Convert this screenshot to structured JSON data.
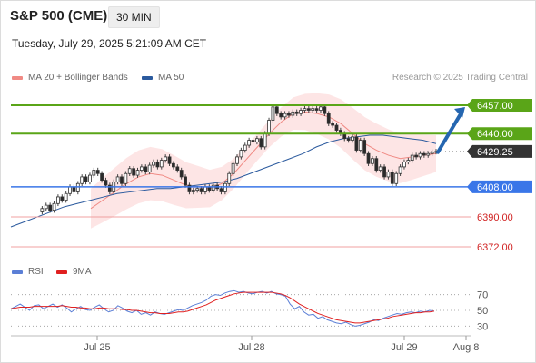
{
  "header": {
    "title": "S&P 500 (CME)",
    "timeframe": "30 MIN",
    "datetime": "Tuesday, July 29, 2025 5:21:09 AM CET",
    "source": "Research © 2025 Trading Central"
  },
  "legend_main": [
    {
      "label": "MA 20 + Bollinger Bands",
      "color": "#f08a84"
    },
    {
      "label": "MA 50",
      "color": "#2b5a9e"
    }
  ],
  "legend_rsi": [
    {
      "label": "RSI",
      "color": "#5b7fd6"
    },
    {
      "label": "9MA",
      "color": "#e02020"
    }
  ],
  "colors": {
    "resistance": "#5aa518",
    "support": "#3a76e8",
    "target": "#f0a0a0",
    "price_tag": "#333333",
    "arrow": "#2566b0",
    "band_fill": "#fde0e0",
    "candle_up": "#5aa518",
    "candle_down": "#e02020"
  },
  "chart_data": [
    {
      "type": "candlestick",
      "title": "S&P 500 (CME)",
      "price_range": [
        6362,
        6468
      ],
      "x_ticks": [
        "Jul 25",
        "Jul 28",
        "Jul 29",
        "Aug 8"
      ],
      "levels": [
        {
          "value": 6457.0,
          "label": "6457.00",
          "kind": "resistance"
        },
        {
          "value": 6440.0,
          "label": "6440.00",
          "kind": "resistance"
        },
        {
          "value": 6429.25,
          "label": "6429.25",
          "kind": "last_price"
        },
        {
          "value": 6408.0,
          "label": "6408.00",
          "kind": "support"
        },
        {
          "value": 6390.0,
          "label": "6390.00",
          "kind": "target"
        },
        {
          "value": 6372.0,
          "label": "6372.00",
          "kind": "target"
        }
      ],
      "close_series": [
        6393,
        6395,
        6397,
        6394,
        6398,
        6402,
        6400,
        6404,
        6408,
        6405,
        6410,
        6414,
        6411,
        6415,
        6418,
        6416,
        6412,
        6409,
        6405,
        6411,
        6414,
        6410,
        6416,
        6419,
        6415,
        6418,
        6420,
        6417,
        6421,
        6423,
        6420,
        6424,
        6426,
        6422,
        6420,
        6418,
        6414,
        6409,
        6405,
        6406,
        6407,
        6405,
        6408,
        6406,
        6409,
        6407,
        6405,
        6410,
        6416,
        6422,
        6426,
        6430,
        6433,
        6436,
        6435,
        6437,
        6432,
        6440,
        6448,
        6456,
        6452,
        6450,
        6452,
        6451,
        6453,
        6452,
        6454,
        6455,
        6454,
        6455,
        6454,
        6456,
        6452,
        6446,
        6445,
        6442,
        6440,
        6437,
        6436,
        6438,
        6430,
        6436,
        6428,
        6422,
        6425,
        6418,
        6420,
        6414,
        6417,
        6410,
        6416,
        6420,
        6423,
        6424,
        6427,
        6426,
        6428,
        6427,
        6428,
        6429,
        6429.25
      ],
      "ma50_series": [
        6384,
        6387,
        6390,
        6393,
        6396,
        6398,
        6400,
        6402,
        6404,
        6405,
        6406,
        6407,
        6407,
        6408,
        6409,
        6410,
        6411,
        6413,
        6416,
        6419,
        6422,
        6425,
        6428,
        6432,
        6435,
        6437,
        6438,
        6439,
        6439,
        6438,
        6437,
        6436,
        6434
      ],
      "ma20_series": [
        6395,
        6400,
        6405,
        6410,
        6414,
        6416,
        6415,
        6412,
        6409,
        6408,
        6407,
        6410,
        6416,
        6424,
        6432,
        6440,
        6447,
        6452,
        6453,
        6452,
        6450,
        6446,
        6440,
        6434,
        6430,
        6427,
        6425,
        6426,
        6427,
        6428
      ],
      "forecast_arrow": {
        "from": 6431,
        "to": 6457
      }
    },
    {
      "type": "line",
      "title": "RSI",
      "y_ticks": [
        "70",
        "50",
        "30"
      ],
      "ylim": [
        20,
        80
      ],
      "series": [
        {
          "name": "RSI",
          "values": [
            52,
            55,
            58,
            54,
            50,
            56,
            57,
            52,
            55,
            58,
            54,
            57,
            53,
            48,
            52,
            55,
            51,
            50,
            54,
            57,
            52,
            48,
            50,
            56,
            53,
            49,
            47,
            50,
            45,
            47,
            44,
            48,
            46,
            45,
            47,
            49,
            51,
            50,
            53,
            56,
            58,
            60,
            63,
            68,
            70,
            69,
            72,
            74,
            75,
            73,
            74,
            72,
            71,
            73,
            74,
            72,
            74,
            71,
            70,
            68,
            58,
            52,
            55,
            48,
            44,
            45,
            40,
            42,
            38,
            36,
            34,
            33,
            35,
            32,
            30,
            31,
            33,
            35,
            38,
            37,
            40,
            42,
            44,
            46,
            45,
            47,
            48,
            47,
            49,
            48,
            50,
            49
          ]
        },
        {
          "name": "9MA",
          "values": [
            52,
            53,
            54,
            54,
            54,
            55,
            55,
            55,
            55,
            55,
            55,
            56,
            55,
            54,
            54,
            53,
            53,
            52,
            52,
            53,
            53,
            52,
            52,
            52,
            51,
            51,
            50,
            50,
            49,
            48,
            47,
            47,
            46,
            46,
            46,
            47,
            48,
            48,
            49,
            51,
            53,
            55,
            57,
            60,
            63,
            65,
            67,
            69,
            71,
            72,
            73,
            73,
            73,
            73,
            73,
            73,
            73,
            72,
            71,
            69,
            66,
            62,
            58,
            55,
            52,
            49,
            46,
            44,
            42,
            40,
            38,
            37,
            36,
            35,
            34,
            34,
            35,
            36,
            37,
            38,
            39,
            40,
            42,
            43,
            44,
            45,
            46,
            47,
            47,
            48,
            48,
            49
          ]
        }
      ]
    }
  ]
}
